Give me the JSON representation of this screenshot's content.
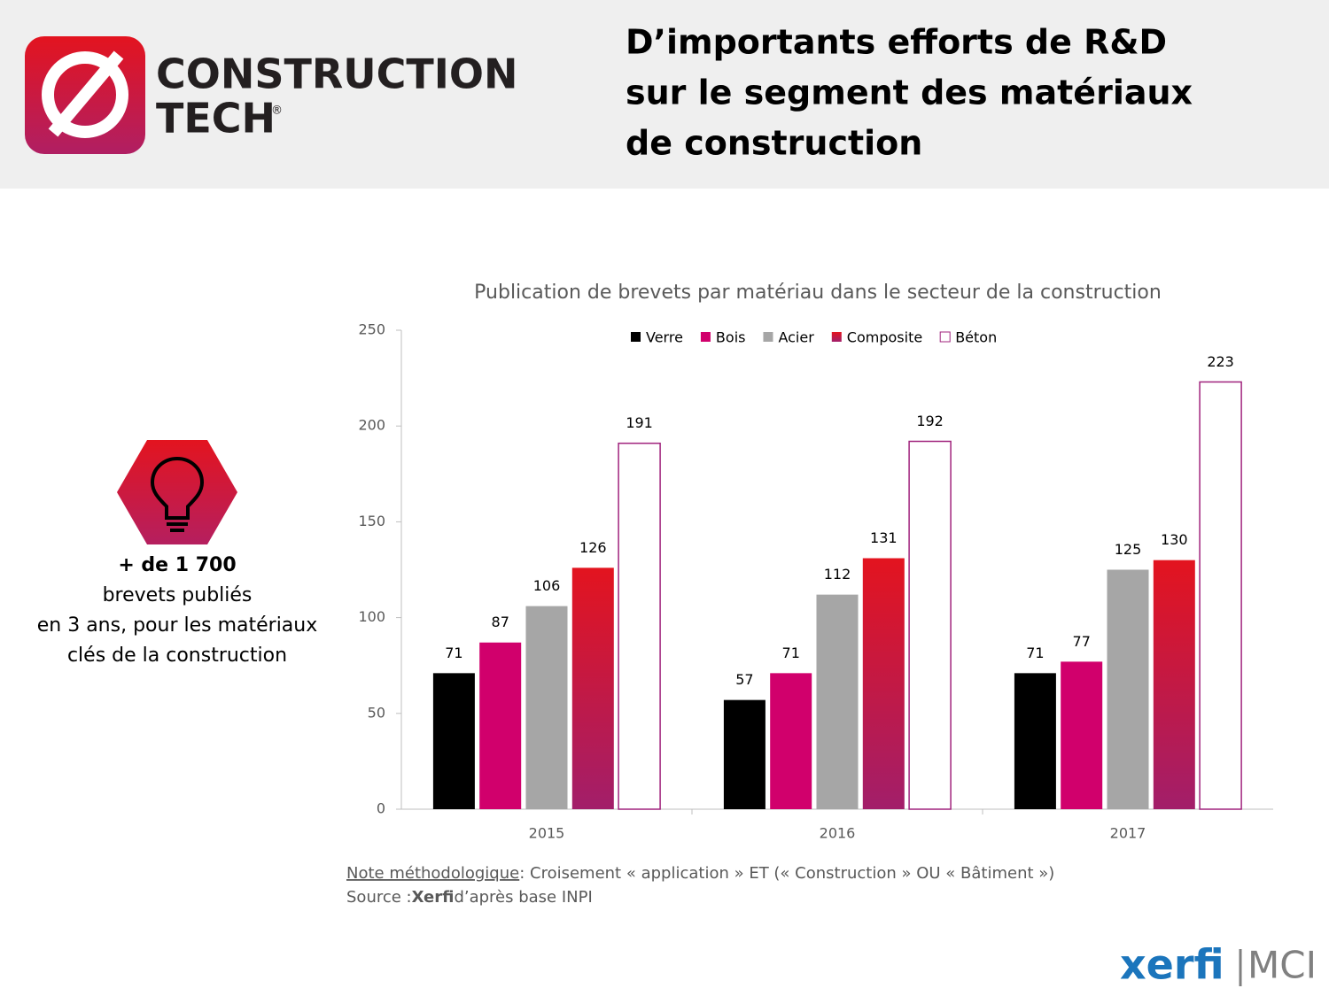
{
  "header": {
    "logo_line1": "CONSTRUCTION",
    "logo_line2": "TECH",
    "logo_mark": "®",
    "title_lines": [
      "D’importants efforts de R&D",
      "sur le segment des matériaux",
      "de construction"
    ]
  },
  "highlight": {
    "figure": "+ de 1 700",
    "lines": [
      "brevets publiés",
      "en 3 ans, pour les matériaux",
      "clés de la construction"
    ]
  },
  "chart_data": {
    "type": "bar",
    "title": "Publication de brevets par matériau dans le secteur de la construction",
    "categories": [
      "2015",
      "2016",
      "2017"
    ],
    "series": [
      {
        "name": "Verre",
        "color": "#000000",
        "values": [
          71,
          57,
          71
        ]
      },
      {
        "name": "Bois",
        "color": "#d1006c",
        "values": [
          87,
          71,
          77
        ]
      },
      {
        "name": "Acier",
        "color": "#a6a6a6",
        "values": [
          106,
          112,
          125
        ]
      },
      {
        "name": "Composite",
        "color": "#e3141f",
        "values": [
          126,
          131,
          130
        ]
      },
      {
        "name": "Béton",
        "color": "#ffffff",
        "edgecolor": "#a0237d",
        "values": [
          191,
          192,
          223
        ]
      }
    ],
    "ylim": [
      0,
      250
    ],
    "yticks": [
      0,
      50,
      100,
      150,
      200,
      250
    ],
    "grid": false,
    "legend": "top"
  },
  "note": {
    "label": "Note méthodologique",
    "text": " : Croisement « application » ET (« Construction » OU « Bâtiment »)"
  },
  "source": {
    "label": "Source : ",
    "name": "Xerfi",
    "text": " d’après base INPI"
  },
  "footer": {
    "brand": "xerfi",
    "sub": "MCI"
  }
}
